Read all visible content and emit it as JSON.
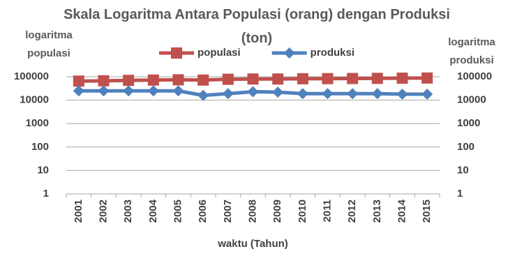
{
  "chart_data": {
    "type": "line",
    "title": "Skala Logaritma Antara Populasi (orang) dengan Produksi (ton)",
    "ylabel": "logaritma populasi",
    "y2label": "logaritma produksi",
    "xlabel": "waktu (Tahun)",
    "categories": [
      "2001",
      "2002",
      "2003",
      "2004",
      "2005",
      "2006",
      "2007",
      "2008",
      "2009",
      "2010",
      "2011",
      "2012",
      "2013",
      "2014",
      "2015"
    ],
    "series": [
      {
        "name": "populasi",
        "color": "#c0504d",
        "marker": "square",
        "values": [
          65000,
          67000,
          70000,
          72000,
          74000,
          72000,
          78000,
          80000,
          80000,
          82000,
          83000,
          84000,
          85000,
          87000,
          88000
        ]
      },
      {
        "name": "produksi",
        "color": "#4f81bd",
        "marker": "diamond",
        "axis": "y2",
        "values": [
          25000,
          25000,
          25000,
          25000,
          25000,
          16000,
          19000,
          23000,
          22000,
          19000,
          19000,
          19000,
          19000,
          18000,
          18000
        ]
      }
    ],
    "yscale": "log",
    "y2scale": "log",
    "ylim": [
      1,
      100000
    ],
    "yticks": [
      1,
      10,
      100,
      1000,
      10000,
      100000
    ],
    "y2lim": [
      1,
      100000
    ],
    "y2ticks": [
      1,
      10,
      100,
      1000,
      10000,
      100000
    ],
    "grid": true,
    "legend": "top"
  }
}
